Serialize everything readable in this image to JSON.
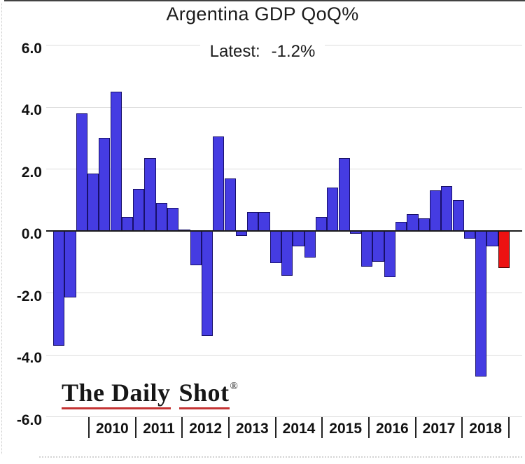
{
  "title": "Argentina GDP QoQ%",
  "annotation": {
    "label": "Latest:",
    "value": "-1.2%"
  },
  "logo": {
    "part1": "The Daily",
    "part2": "Shot",
    "mark": "®"
  },
  "y_axis": {
    "tick_labels": [
      "6.0",
      "4.0",
      "2.0",
      "0.0",
      "-2.0",
      "-4.0",
      "-6.0"
    ],
    "tick_values": [
      6,
      4,
      2,
      0,
      -2,
      -4,
      -6
    ]
  },
  "x_axis": {
    "year_labels": [
      "2010",
      "2011",
      "2012",
      "2013",
      "2014",
      "2015",
      "2016",
      "2017",
      "2018"
    ]
  },
  "colors": {
    "bar_fill": "#453CE2",
    "bar_border": "#18106b",
    "latest_fill": "#EC1212",
    "latest_border": "#3a0404",
    "gridline": "#dcdcdc",
    "zero_line": "#1b1b1b",
    "logo_underline": "#c43434",
    "text": "#1c1c1c"
  },
  "chart_data": {
    "type": "bar",
    "title": "Argentina GDP QoQ%",
    "annotation": "Latest: -1.2%",
    "ylabel": "GDP QoQ %",
    "ylim": [
      -6,
      6
    ],
    "ytick_interval": 2,
    "grid": "horizontal",
    "legend": "none",
    "bars_per_year": 4,
    "series": [
      {
        "year": "2009",
        "labeled": false,
        "values": [
          -3.7,
          -2.15,
          3.8,
          1.85
        ]
      },
      {
        "year": "2010",
        "labeled": true,
        "values": [
          3.0,
          4.5,
          0.45,
          1.35
        ]
      },
      {
        "year": "2011",
        "labeled": true,
        "values": [
          2.35,
          0.9,
          0.75,
          0.05
        ]
      },
      {
        "year": "2012",
        "labeled": true,
        "values": [
          -1.1,
          -3.4,
          3.05,
          1.7
        ]
      },
      {
        "year": "2013",
        "labeled": true,
        "values": [
          -0.15,
          0.6,
          0.6,
          -1.05
        ]
      },
      {
        "year": "2014",
        "labeled": true,
        "values": [
          -1.45,
          -0.5,
          -0.85,
          0.45
        ]
      },
      {
        "year": "2015",
        "labeled": true,
        "values": [
          1.4,
          2.35,
          -0.1,
          -1.15
        ]
      },
      {
        "year": "2016",
        "labeled": true,
        "values": [
          -1.0,
          -1.5,
          0.3,
          0.55
        ]
      },
      {
        "year": "2017",
        "labeled": true,
        "values": [
          0.4,
          1.3,
          1.45,
          1.0
        ]
      },
      {
        "year": "2018",
        "labeled": true,
        "values": [
          -0.25,
          -4.7,
          -0.5,
          -1.2
        ]
      }
    ],
    "highlight": {
      "position": "last",
      "value": -1.2,
      "meaning": "latest quarter",
      "color": "#EC1212"
    }
  }
}
